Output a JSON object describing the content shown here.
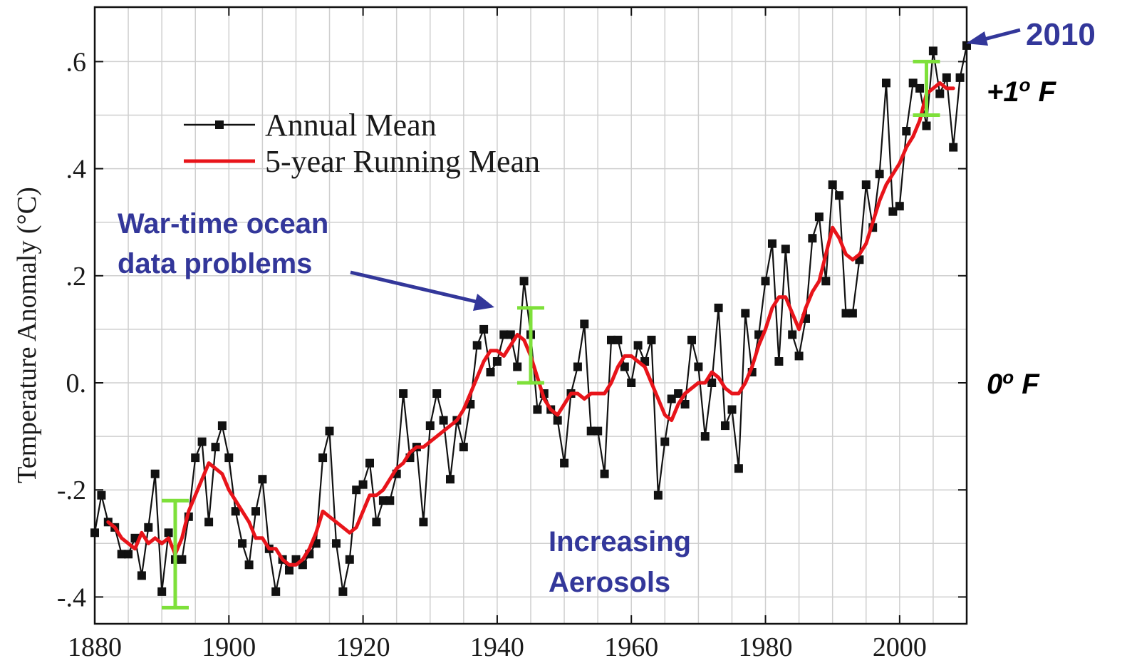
{
  "chart_data": {
    "type": "line",
    "ylabel": "Temperature Anomaly (°C)",
    "xlim": [
      1880,
      2010
    ],
    "ylim": [
      -0.45,
      0.7
    ],
    "x_ticks": [
      "1880",
      "1900",
      "1920",
      "1940",
      "1960",
      "1980",
      "2000"
    ],
    "y_ticks": [
      {
        "value": 0.6,
        "label": ".6"
      },
      {
        "value": 0.4,
        "label": ".4"
      },
      {
        "value": 0.2,
        "label": ".2"
      },
      {
        "value": 0.0,
        "label": "0."
      },
      {
        "value": -0.2,
        "label": "-.2"
      },
      {
        "value": -0.4,
        "label": "-.4"
      }
    ],
    "grid": true,
    "legend_position": "upper-left",
    "colors": {
      "annual": "#111111",
      "running": "#e8141a",
      "error": "#7ee03a",
      "annotation": "#33379a"
    },
    "series": [
      {
        "name": "Annual Mean",
        "x": [
          1880,
          1881,
          1882,
          1883,
          1884,
          1885,
          1886,
          1887,
          1888,
          1889,
          1890,
          1891,
          1892,
          1893,
          1894,
          1895,
          1896,
          1897,
          1898,
          1899,
          1900,
          1901,
          1902,
          1903,
          1904,
          1905,
          1906,
          1907,
          1908,
          1909,
          1910,
          1911,
          1912,
          1913,
          1914,
          1915,
          1916,
          1917,
          1918,
          1919,
          1920,
          1921,
          1922,
          1923,
          1924,
          1925,
          1926,
          1927,
          1928,
          1929,
          1930,
          1931,
          1932,
          1933,
          1934,
          1935,
          1936,
          1937,
          1938,
          1939,
          1940,
          1941,
          1942,
          1943,
          1944,
          1945,
          1946,
          1947,
          1948,
          1949,
          1950,
          1951,
          1952,
          1953,
          1954,
          1955,
          1956,
          1957,
          1958,
          1959,
          1960,
          1961,
          1962,
          1963,
          1964,
          1965,
          1966,
          1967,
          1968,
          1969,
          1970,
          1971,
          1972,
          1973,
          1974,
          1975,
          1976,
          1977,
          1978,
          1979,
          1980,
          1981,
          1982,
          1983,
          1984,
          1985,
          1986,
          1987,
          1988,
          1989,
          1990,
          1991,
          1992,
          1993,
          1994,
          1995,
          1996,
          1997,
          1998,
          1999,
          2000,
          2001,
          2002,
          2003,
          2004,
          2005,
          2006,
          2007,
          2008,
          2009,
          2010
        ],
        "values": [
          -0.28,
          -0.21,
          -0.26,
          -0.27,
          -0.32,
          -0.32,
          -0.29,
          -0.36,
          -0.27,
          -0.17,
          -0.39,
          -0.28,
          -0.33,
          -0.33,
          -0.25,
          -0.14,
          -0.11,
          -0.26,
          -0.12,
          -0.08,
          -0.14,
          -0.24,
          -0.3,
          -0.34,
          -0.24,
          -0.18,
          -0.31,
          -0.39,
          -0.33,
          -0.35,
          -0.33,
          -0.34,
          -0.32,
          -0.3,
          -0.14,
          -0.09,
          -0.3,
          -0.39,
          -0.33,
          -0.2,
          -0.19,
          -0.15,
          -0.26,
          -0.22,
          -0.22,
          -0.17,
          -0.02,
          -0.14,
          -0.12,
          -0.26,
          -0.08,
          -0.02,
          -0.07,
          -0.18,
          -0.07,
          -0.12,
          -0.04,
          0.07,
          0.1,
          0.02,
          0.04,
          0.09,
          0.09,
          0.03,
          0.19,
          0.09,
          -0.05,
          -0.02,
          -0.05,
          -0.07,
          -0.15,
          -0.02,
          0.03,
          0.11,
          -0.09,
          -0.09,
          -0.17,
          0.08,
          0.08,
          0.03,
          -0.0,
          0.07,
          0.04,
          0.08,
          -0.21,
          -0.11,
          -0.03,
          -0.02,
          -0.04,
          0.08,
          0.03,
          -0.1,
          0.0,
          0.14,
          -0.08,
          -0.05,
          -0.16,
          0.13,
          0.02,
          0.09,
          0.19,
          0.26,
          0.04,
          0.25,
          0.09,
          0.05,
          0.12,
          0.27,
          0.31,
          0.19,
          0.37,
          0.35,
          0.13,
          0.13,
          0.23,
          0.37,
          0.29,
          0.39,
          0.56,
          0.32,
          0.33,
          0.47,
          0.56,
          0.55,
          0.48,
          0.62,
          0.54,
          0.57,
          0.44,
          0.57,
          0.63
        ]
      },
      {
        "name": "5-year Running Mean",
        "x": [
          1882,
          1883,
          1884,
          1885,
          1886,
          1887,
          1888,
          1889,
          1890,
          1891,
          1892,
          1893,
          1894,
          1895,
          1896,
          1897,
          1898,
          1899,
          1900,
          1901,
          1902,
          1903,
          1904,
          1905,
          1906,
          1907,
          1908,
          1909,
          1910,
          1911,
          1912,
          1913,
          1914,
          1915,
          1916,
          1917,
          1918,
          1919,
          1920,
          1921,
          1922,
          1923,
          1924,
          1925,
          1926,
          1927,
          1928,
          1929,
          1930,
          1931,
          1932,
          1933,
          1934,
          1935,
          1936,
          1937,
          1938,
          1939,
          1940,
          1941,
          1942,
          1943,
          1944,
          1945,
          1946,
          1947,
          1948,
          1949,
          1950,
          1951,
          1952,
          1953,
          1954,
          1955,
          1956,
          1957,
          1958,
          1959,
          1960,
          1961,
          1962,
          1963,
          1964,
          1965,
          1966,
          1967,
          1968,
          1969,
          1970,
          1971,
          1972,
          1973,
          1974,
          1975,
          1976,
          1977,
          1978,
          1979,
          1980,
          1981,
          1982,
          1983,
          1984,
          1985,
          1986,
          1987,
          1988,
          1989,
          1990,
          1991,
          1992,
          1993,
          1994,
          1995,
          1996,
          1997,
          1998,
          1999,
          2000,
          2001,
          2002,
          2003,
          2004,
          2005,
          2006,
          2007,
          2008
        ],
        "values": [
          -0.26,
          -0.27,
          -0.29,
          -0.3,
          -0.31,
          -0.28,
          -0.3,
          -0.29,
          -0.3,
          -0.29,
          -0.32,
          -0.29,
          -0.24,
          -0.21,
          -0.18,
          -0.15,
          -0.16,
          -0.17,
          -0.2,
          -0.22,
          -0.24,
          -0.26,
          -0.29,
          -0.29,
          -0.31,
          -0.31,
          -0.33,
          -0.34,
          -0.34,
          -0.33,
          -0.31,
          -0.28,
          -0.24,
          -0.25,
          -0.26,
          -0.27,
          -0.28,
          -0.27,
          -0.24,
          -0.21,
          -0.21,
          -0.2,
          -0.18,
          -0.16,
          -0.15,
          -0.13,
          -0.12,
          -0.12,
          -0.11,
          -0.1,
          -0.09,
          -0.08,
          -0.07,
          -0.05,
          -0.02,
          0.01,
          0.04,
          0.06,
          0.06,
          0.05,
          0.07,
          0.09,
          0.08,
          0.05,
          0.01,
          -0.03,
          -0.05,
          -0.06,
          -0.04,
          -0.02,
          -0.02,
          -0.03,
          -0.02,
          -0.02,
          -0.02,
          0.0,
          0.03,
          0.05,
          0.05,
          0.04,
          0.03,
          0.0,
          -0.03,
          -0.06,
          -0.07,
          -0.04,
          -0.02,
          -0.01,
          0.0,
          0.0,
          0.02,
          0.01,
          -0.01,
          -0.02,
          -0.02,
          0.0,
          0.03,
          0.07,
          0.1,
          0.14,
          0.16,
          0.16,
          0.13,
          0.1,
          0.14,
          0.17,
          0.19,
          0.24,
          0.29,
          0.27,
          0.24,
          0.23,
          0.24,
          0.26,
          0.3,
          0.34,
          0.37,
          0.39,
          0.41,
          0.44,
          0.46,
          0.49,
          0.54,
          0.55,
          0.56,
          0.55,
          0.55
        ]
      }
    ],
    "error_bars": [
      {
        "x": 1892,
        "low": -0.42,
        "high": -0.22
      },
      {
        "x": 1945,
        "low": 0.0,
        "high": 0.14
      },
      {
        "x": 2004,
        "low": 0.5,
        "high": 0.6
      }
    ],
    "annotations": {
      "war_line1": "War-time ocean",
      "war_line2": "data problems",
      "aerosol_line1": "Increasing",
      "aerosol_line2": "Aerosols",
      "year_2010": "2010",
      "plus_prefix": "+1",
      "plus_sup": "o",
      "plus_unit": " F",
      "zero_prefix": "0",
      "zero_sup": "o",
      "zero_unit": " F"
    }
  }
}
